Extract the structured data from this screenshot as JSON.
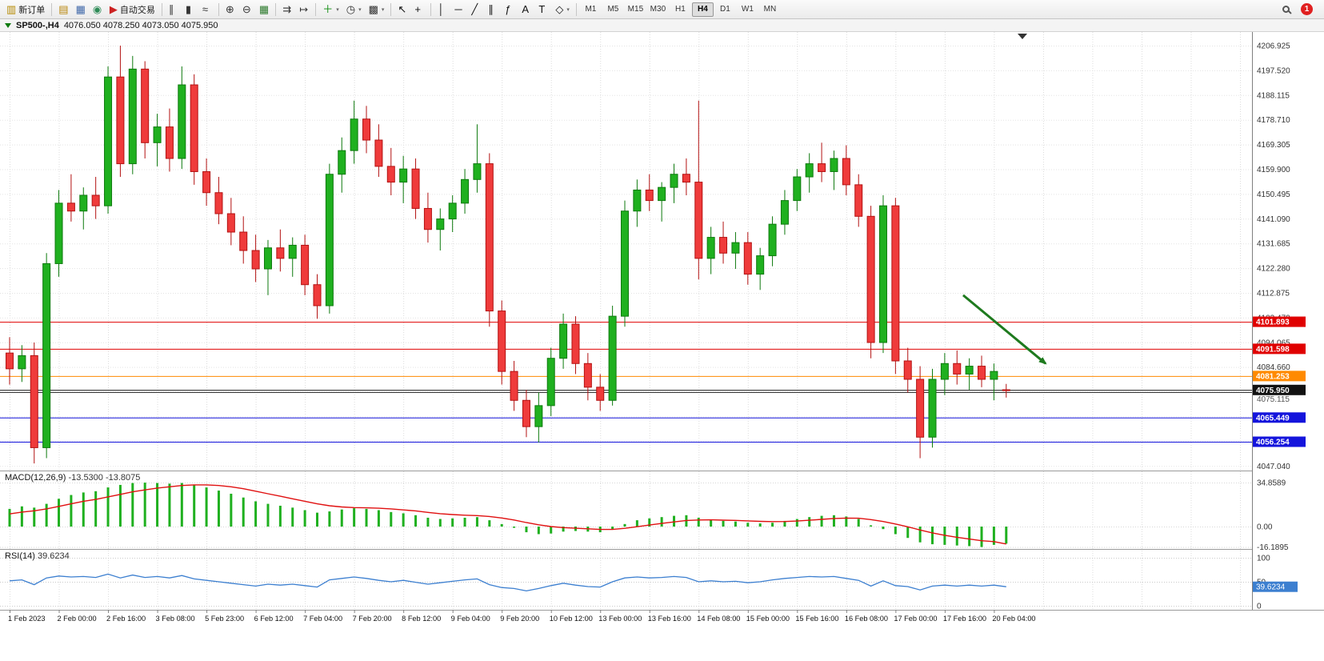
{
  "toolbar": {
    "items": [
      {
        "type": "button",
        "name": "new-order-button",
        "icon": "new-order-icon",
        "glyph": "▥",
        "label": "新订单",
        "color": "#b58900"
      },
      {
        "type": "sep"
      },
      {
        "type": "button",
        "name": "market-watch-button",
        "icon": "market-watch-icon",
        "glyph": "▤",
        "color": "#b8860b"
      },
      {
        "type": "button",
        "name": "data-window-button",
        "icon": "data-window-icon",
        "glyph": "▦",
        "color": "#4169aa"
      },
      {
        "type": "button",
        "name": "navigator-button",
        "icon": "navigator-icon",
        "glyph": "◉",
        "color": "#2e8b57"
      },
      {
        "type": "button",
        "name": "autotrade-button",
        "icon": "autotrade-play-icon",
        "glyph": "▶",
        "label": "自动交易",
        "color": "#cc2222"
      },
      {
        "type": "sep"
      },
      {
        "type": "button",
        "name": "bar-chart-type-button",
        "icon": "bar-chart-icon",
        "glyph": "∥",
        "color": "#333333"
      },
      {
        "type": "button",
        "name": "candlestick-chart-type-button",
        "icon": "candlestick-icon",
        "glyph": "▮",
        "color": "#333333"
      },
      {
        "type": "button",
        "name": "line-chart-type-button",
        "icon": "line-chart-icon",
        "glyph": "≈",
        "color": "#333333"
      },
      {
        "type": "sep"
      },
      {
        "type": "button",
        "name": "zoom-in-button",
        "icon": "zoom-in-icon",
        "glyph": "⊕",
        "color": "#333333"
      },
      {
        "type": "button",
        "name": "zoom-out-button",
        "icon": "zoom-out-icon",
        "glyph": "⊖",
        "color": "#333333"
      },
      {
        "type": "button",
        "name": "tile-windows-button",
        "icon": "tile-windows-icon",
        "glyph": "▦",
        "color": "#2c7a2c"
      },
      {
        "type": "sep"
      },
      {
        "type": "button",
        "name": "auto-scroll-button",
        "icon": "auto-scroll-icon",
        "glyph": "⇉",
        "color": "#333333"
      },
      {
        "type": "button",
        "name": "chart-shift-button",
        "icon": "chart-shift-icon",
        "glyph": "↦",
        "color": "#333333"
      },
      {
        "type": "sep"
      },
      {
        "type": "button",
        "name": "add-indicator-button",
        "icon": "add-indicator-icon",
        "glyph": "＋",
        "color": "#0a8a0a",
        "dropdown": true
      },
      {
        "type": "button",
        "name": "period-button",
        "icon": "clock-icon",
        "glyph": "◷",
        "color": "#333333",
        "dropdown": true
      },
      {
        "type": "button",
        "name": "template-button",
        "icon": "template-icon",
        "glyph": "▩",
        "color": "#333333",
        "dropdown": true
      },
      {
        "type": "sep"
      },
      {
        "type": "button",
        "name": "cursor-button",
        "icon": "cursor-icon",
        "glyph": "↖",
        "color": "#111111"
      },
      {
        "type": "button",
        "name": "crosshair-button",
        "icon": "crosshair-icon",
        "glyph": "+",
        "color": "#111111"
      },
      {
        "type": "sep"
      },
      {
        "type": "button",
        "name": "vertical-line-button",
        "icon": "vertical-line-icon",
        "glyph": "│",
        "color": "#111111"
      },
      {
        "type": "button",
        "name": "horizontal-line-button",
        "icon": "horizontal-line-icon",
        "glyph": "─",
        "color": "#111111"
      },
      {
        "type": "button",
        "name": "trendline-button",
        "icon": "trendline-icon",
        "glyph": "╱",
        "color": "#111111"
      },
      {
        "type": "button",
        "name": "channel-button",
        "icon": "channel-icon",
        "glyph": "∥",
        "color": "#111111"
      },
      {
        "type": "button",
        "name": "fibonacci-button",
        "icon": "fibonacci-icon",
        "glyph": "ƒ",
        "color": "#111111"
      },
      {
        "type": "button",
        "name": "text-button",
        "icon": "text-icon",
        "glyph": "A",
        "color": "#111111"
      },
      {
        "type": "button",
        "name": "label-button",
        "icon": "label-icon",
        "glyph": "T",
        "color": "#111111"
      },
      {
        "type": "button",
        "name": "shapes-button",
        "icon": "shapes-icon",
        "glyph": "◇",
        "color": "#111111",
        "dropdown": true
      },
      {
        "type": "sep"
      },
      {
        "type": "tf-group"
      },
      {
        "type": "spacer"
      },
      {
        "type": "search",
        "name": "search-button"
      },
      {
        "type": "badge",
        "name": "notifications-badge",
        "count": "1"
      }
    ],
    "timeframes": [
      "M1",
      "M5",
      "M15",
      "M30",
      "H1",
      "H4",
      "D1",
      "W1",
      "MN"
    ],
    "active_timeframe": "H4",
    "notification_count": "1"
  },
  "chart": {
    "symbol_period": "SP500-,H4",
    "ohlc_text": "4076.050 4078.250 4073.050 4075.950"
  },
  "chart_data": {
    "type": "candlestick",
    "symbol": "SP500-",
    "period": "H4",
    "open": "4076.050",
    "high": "4078.250",
    "low": "4073.050",
    "close": "4075.950",
    "x_labels": [
      "1 Feb 2023",
      "2 Feb 00:00",
      "2 Feb 16:00",
      "3 Feb 08:00",
      "5 Feb 23:00",
      "6 Feb 12:00",
      "7 Feb 04:00",
      "7 Feb 20:00",
      "8 Feb 12:00",
      "9 Feb 04:00",
      "9 Feb 20:00",
      "10 Feb 12:00",
      "13 Feb 00:00",
      "13 Feb 16:00",
      "14 Feb 08:00",
      "15 Feb 00:00",
      "15 Feb 16:00",
      "16 Feb 08:00",
      "17 Feb 00:00",
      "17 Feb 16:00",
      "20 Feb 04:00"
    ],
    "candles_per_label": 4,
    "candles": [
      [
        4090,
        4096,
        4078,
        4084
      ],
      [
        4084,
        4093,
        4079,
        4089
      ],
      [
        4089,
        4094,
        4048,
        4054
      ],
      [
        4054,
        4128,
        4050,
        4124
      ],
      [
        4124,
        4152,
        4119,
        4147
      ],
      [
        4147,
        4158,
        4140,
        4144
      ],
      [
        4144,
        4153,
        4137,
        4150
      ],
      [
        4150,
        4157,
        4141,
        4146
      ],
      [
        4146,
        4199,
        4143,
        4195
      ],
      [
        4195,
        4206.925,
        4157,
        4162
      ],
      [
        4162,
        4203,
        4158,
        4198
      ],
      [
        4198,
        4201,
        4164,
        4170
      ],
      [
        4170,
        4181,
        4161,
        4176
      ],
      [
        4176,
        4183,
        4159,
        4164
      ],
      [
        4164,
        4199,
        4160,
        4192
      ],
      [
        4192,
        4196,
        4154,
        4159
      ],
      [
        4159,
        4164,
        4146,
        4151
      ],
      [
        4151,
        4157,
        4139,
        4143
      ],
      [
        4143,
        4149,
        4131,
        4136
      ],
      [
        4136,
        4142,
        4124,
        4129
      ],
      [
        4129,
        4135,
        4117,
        4122
      ],
      [
        4122,
        4133,
        4112,
        4130
      ],
      [
        4130,
        4137,
        4121,
        4126
      ],
      [
        4126,
        4134,
        4119,
        4131
      ],
      [
        4131,
        4135,
        4112,
        4116
      ],
      [
        4116,
        4120,
        4103,
        4108
      ],
      [
        4108,
        4162,
        4105,
        4158
      ],
      [
        4158,
        4172,
        4151,
        4167
      ],
      [
        4167,
        4186,
        4162,
        4179
      ],
      [
        4179,
        4184,
        4166,
        4171
      ],
      [
        4171,
        4177,
        4157,
        4161
      ],
      [
        4161,
        4168,
        4150,
        4155
      ],
      [
        4155,
        4165,
        4147,
        4160
      ],
      [
        4160,
        4164,
        4141,
        4145
      ],
      [
        4145,
        4151,
        4132,
        4137
      ],
      [
        4137,
        4145,
        4129,
        4141
      ],
      [
        4141,
        4150,
        4136,
        4147
      ],
      [
        4147,
        4160,
        4143,
        4156
      ],
      [
        4156,
        4177,
        4151,
        4162
      ],
      [
        4162,
        4166,
        4100,
        4106
      ],
      [
        4106,
        4110,
        4078,
        4083
      ],
      [
        4083,
        4087,
        4068,
        4072
      ],
      [
        4072,
        4076,
        4058,
        4062
      ],
      [
        4062,
        4075,
        4056,
        4070
      ],
      [
        4070,
        4092,
        4066,
        4088
      ],
      [
        4088,
        4105,
        4084,
        4101
      ],
      [
        4101,
        4104,
        4082,
        4086
      ],
      [
        4086,
        4090,
        4072,
        4077
      ],
      [
        4077,
        4082,
        4068,
        4072
      ],
      [
        4072,
        4108,
        4070,
        4104
      ],
      [
        4104,
        4148,
        4100,
        4144
      ],
      [
        4144,
        4156,
        4138,
        4152
      ],
      [
        4152,
        4158,
        4144,
        4148
      ],
      [
        4148,
        4155,
        4140,
        4153
      ],
      [
        4153,
        4162,
        4147,
        4158
      ],
      [
        4158,
        4164,
        4150,
        4155
      ],
      [
        4155,
        4186,
        4118,
        4126
      ],
      [
        4126,
        4138,
        4120,
        4134
      ],
      [
        4134,
        4140,
        4124,
        4128
      ],
      [
        4128,
        4136,
        4122,
        4132
      ],
      [
        4132,
        4136,
        4116,
        4120
      ],
      [
        4120,
        4130,
        4114,
        4127
      ],
      [
        4127,
        4142,
        4123,
        4139
      ],
      [
        4139,
        4152,
        4135,
        4148
      ],
      [
        4148,
        4160,
        4144,
        4157
      ],
      [
        4157,
        4166,
        4151,
        4162
      ],
      [
        4162,
        4170,
        4155,
        4159
      ],
      [
        4159,
        4167,
        4152,
        4164
      ],
      [
        4164,
        4169,
        4150,
        4154
      ],
      [
        4154,
        4158,
        4138,
        4142
      ],
      [
        4142,
        4146,
        4088,
        4094
      ],
      [
        4094,
        4150,
        4090,
        4146
      ],
      [
        4146,
        4149,
        4082,
        4087
      ],
      [
        4087,
        4092,
        4075,
        4080
      ],
      [
        4080,
        4085,
        4050,
        4058
      ],
      [
        4058,
        4084,
        4054,
        4080
      ],
      [
        4080,
        4090,
        4074,
        4086
      ],
      [
        4086,
        4091,
        4078,
        4082
      ],
      [
        4082,
        4088,
        4076,
        4085
      ],
      [
        4085,
        4089,
        4077,
        4080
      ],
      [
        4080,
        4086,
        4072,
        4083
      ],
      [
        4076.05,
        4078.25,
        4073.05,
        4075.95
      ]
    ],
    "y_axis": {
      "ticks": [
        4206.925,
        4197.52,
        4188.115,
        4178.71,
        4169.305,
        4159.9,
        4150.495,
        4141.09,
        4131.685,
        4122.28,
        4112.875,
        4103.47,
        4094.065,
        4084.66,
        4075.255,
        4065.85,
        4056.445,
        4047.04
      ]
    },
    "hlines": [
      {
        "value": 4101.893,
        "color": "#e00000",
        "label": "4101.893",
        "badge": true
      },
      {
        "value": 4091.598,
        "color": "#e00000",
        "label": "4091.598",
        "badge": true
      },
      {
        "value": 4081.253,
        "color": "#ff8a00",
        "label": "4081.253",
        "badge": true
      },
      {
        "value": 4075.95,
        "color": "#111111",
        "label": "4075.950",
        "badge": true
      },
      {
        "value": 4075.115,
        "color": "#333333",
        "label": "4075.115",
        "badge": false
      },
      {
        "value": 4065.449,
        "color": "#1414dc",
        "label": "4065.449",
        "badge": true
      },
      {
        "value": 4056.254,
        "color": "#1414dc",
        "label": "4056.254",
        "badge": true
      }
    ],
    "colors": {
      "up": "#1fb01f",
      "up_border": "#0e7a0e",
      "down": "#ef3b3b",
      "down_border": "#b31212",
      "grid": "#dcdcdc",
      "background": "#ffffff"
    },
    "annotation_arrow": {
      "x1_candle": 77.5,
      "y1_price": 4112,
      "x2_candle": 84.2,
      "y2_price": 4086,
      "color": "#1e7a1e"
    },
    "macd": {
      "label": "MACD(12,26,9)",
      "values_text": "-13.5300 -13.8075",
      "histogram_color": "#1fb01f",
      "signal_color": "#e01010",
      "scale": [
        {
          "v": 34.8589,
          "label": "34.8589"
        },
        {
          "v": 0,
          "label": "0.00"
        },
        {
          "v": -16.1895,
          "label": "-16.1895"
        }
      ],
      "histogram": [
        14,
        16,
        15,
        18,
        22,
        25,
        27,
        28,
        31,
        33,
        34.5,
        34.8,
        34.5,
        34,
        34.5,
        33,
        31,
        28.5,
        26,
        23,
        20,
        18,
        16.5,
        15,
        13,
        11,
        12,
        13.5,
        14.5,
        14,
        13,
        11.5,
        10.5,
        9,
        7,
        6,
        6.5,
        7,
        7.5,
        5,
        2,
        -1,
        -4.5,
        -6,
        -5.5,
        -4,
        -3.5,
        -4,
        -4.5,
        -2,
        2,
        5,
        6.5,
        7.5,
        8.5,
        9,
        7,
        5.5,
        4.5,
        4,
        3,
        2.5,
        3,
        4.5,
        6,
        7.5,
        8.5,
        9,
        8,
        6,
        1,
        -2,
        -6,
        -9,
        -12.5,
        -14,
        -14.5,
        -15,
        -15.5,
        -16.2,
        -14.5,
        -13.53
      ],
      "signal": [
        10,
        11.5,
        12.5,
        14,
        16,
        18,
        20,
        21.5,
        23.5,
        25.5,
        27.5,
        29,
        30.5,
        31.5,
        32.5,
        33,
        33,
        32.5,
        31.5,
        30,
        28,
        26,
        24,
        22,
        20,
        18,
        16.5,
        15.5,
        15,
        14.8,
        14.5,
        14,
        13.2,
        12.4,
        11.2,
        10.2,
        9.5,
        9,
        8.7,
        8,
        6.8,
        5.2,
        3.2,
        1.4,
        0,
        -0.8,
        -1.3,
        -1.8,
        -2.3,
        -2.3,
        -1.4,
        -0.1,
        1.2,
        2.5,
        3.7,
        4.8,
        5.2,
        5.3,
        5.1,
        4.9,
        4.5,
        4.1,
        3.9,
        4,
        4.4,
        5,
        5.7,
        6.4,
        6.7,
        6.6,
        5.5,
        4,
        2,
        -0.2,
        -2.7,
        -5,
        -6.9,
        -8.5,
        -9.9,
        -11.2,
        -11.9,
        -13.8075
      ]
    },
    "rsi": {
      "label": "RSI(14)",
      "value_text": "39.6234",
      "color": "#3c7fd0",
      "badge_color": "#3c7fd0",
      "scale": [
        {
          "v": 100,
          "label": "100"
        },
        {
          "v": 50,
          "label": "50"
        },
        {
          "v": 0,
          "label": "0"
        }
      ],
      "badge": {
        "v": 39.6234,
        "label": "39.6234"
      },
      "values": [
        52,
        54,
        44,
        58,
        62,
        60,
        61,
        59,
        66,
        58,
        64,
        59,
        61,
        58,
        63,
        56,
        53,
        50,
        47,
        44,
        41,
        45,
        43,
        45,
        42,
        39,
        54,
        57,
        60,
        57,
        53,
        50,
        53,
        49,
        45,
        48,
        51,
        54,
        56,
        44,
        38,
        36,
        31,
        36,
        42,
        47,
        43,
        40,
        39,
        50,
        58,
        60,
        58,
        59,
        61,
        59,
        50,
        52,
        50,
        51,
        48,
        50,
        54,
        57,
        59,
        61,
        60,
        61,
        57,
        53,
        41,
        52,
        42,
        40,
        33,
        41,
        43,
        41,
        43,
        41,
        43,
        39.6234
      ]
    }
  }
}
